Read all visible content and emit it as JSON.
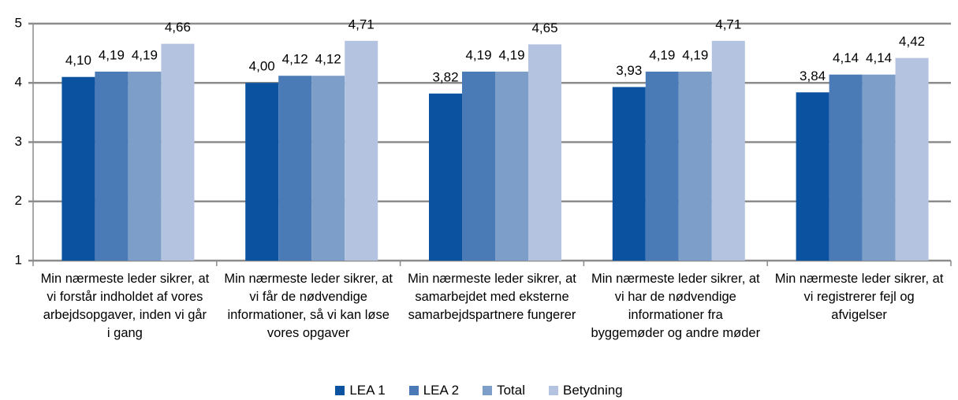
{
  "chart_data": {
    "type": "bar",
    "categories": [
      "Min nærmeste leder sikrer, at vi forstår indholdet af vores arbejdsopgaver, inden vi går i gang",
      "Min nærmeste leder sikrer, at vi får de nødvendige informationer, så vi kan løse vores opgaver",
      "Min nærmeste leder sikrer, at samarbejdet med eksterne samarbejdspartnere fungerer",
      "Min nærmeste leder sikrer, at vi har de nødvendige informationer fra byggemøder og andre møder",
      "Min nærmeste leder sikrer, at vi registrerer fejl og afvigelser"
    ],
    "series": [
      {
        "name": "LEA 1",
        "color": "#0b53a1",
        "values": [
          4.1,
          4.0,
          3.82,
          3.93,
          3.84
        ],
        "value_labels": [
          "4,10",
          "4,00",
          "3,82",
          "3,93",
          "3,84"
        ]
      },
      {
        "name": "LEA 2",
        "color": "#4a7bb6",
        "values": [
          4.19,
          4.12,
          4.19,
          4.19,
          4.14
        ],
        "value_labels": [
          "4,19",
          "4,12",
          "4,19",
          "4,19",
          "4,14"
        ]
      },
      {
        "name": "Total",
        "color": "#7e9eca",
        "values": [
          4.19,
          4.12,
          4.19,
          4.19,
          4.14
        ],
        "value_labels": [
          "4,19",
          "4,12",
          "4,19",
          "4,19",
          "4,14"
        ]
      },
      {
        "name": "Betydning",
        "color": "#b4c4e0",
        "values": [
          4.66,
          4.71,
          4.65,
          4.71,
          4.42
        ],
        "value_labels": [
          "4,66",
          "4,71",
          "4,65",
          "4,71",
          "4,42"
        ]
      }
    ],
    "ylim": [
      1,
      5
    ],
    "yticks": [
      1,
      2,
      3,
      4,
      5
    ],
    "grid": true,
    "legend": "bottom"
  }
}
